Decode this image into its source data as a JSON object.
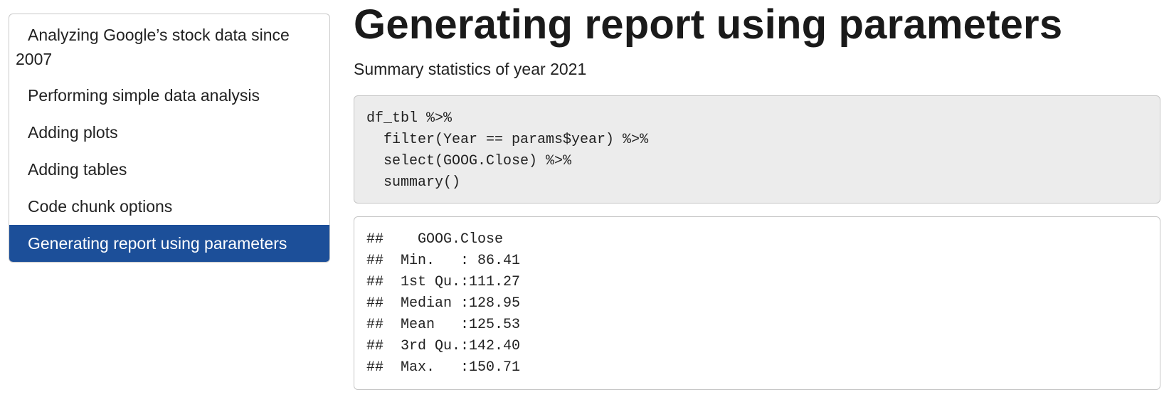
{
  "toc": {
    "items": [
      {
        "label": "Analyzing Google’s stock data since 2007"
      },
      {
        "label": "Performing simple data analysis"
      },
      {
        "label": "Adding plots"
      },
      {
        "label": "Adding tables"
      },
      {
        "label": "Code chunk options"
      },
      {
        "label": "Generating report using parameters"
      }
    ],
    "active_index": 5,
    "active_color": "#1c4f99"
  },
  "main": {
    "title": "Generating report using parameters",
    "subtitle": "Summary statistics of year 2021",
    "code_lines": [
      "df_tbl %>%",
      "  filter(Year == params$year) %>%",
      "  select(GOOG.Close) %>%",
      "  summary()"
    ],
    "output_lines": [
      "##    GOOG.Close",
      "##  Min.   : 86.41",
      "##  1st Qu.:111.27",
      "##  Median :128.95",
      "##  Mean   :125.53",
      "##  3rd Qu.:142.40",
      "##  Max.   :150.71"
    ]
  }
}
